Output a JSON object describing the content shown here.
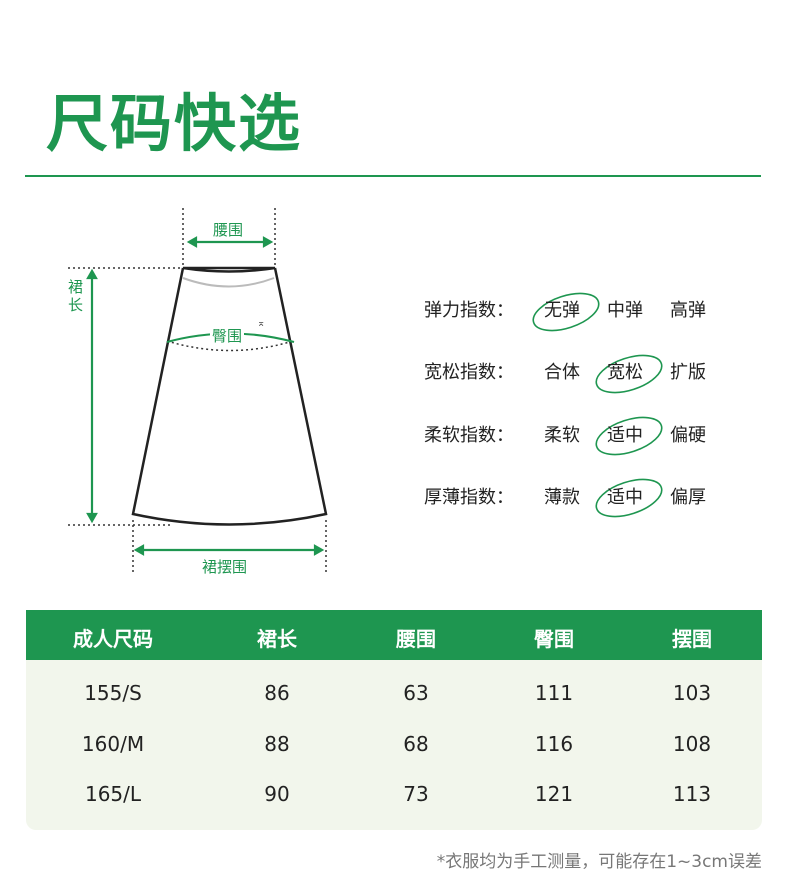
{
  "title": "尺码快选",
  "colors": {
    "accent": "#1e9650",
    "table_body": "#f2f6ec"
  },
  "diagram": {
    "waist": "腰围",
    "hip": "臀围",
    "length": "裙长",
    "hem": "裙摆围"
  },
  "attributes": [
    {
      "label": "弹力指数：",
      "options": [
        "无弹",
        "中弹",
        "高弹"
      ],
      "selected": 0
    },
    {
      "label": "宽松指数：",
      "options": [
        "合体",
        "宽松",
        "扩版"
      ],
      "selected": 1
    },
    {
      "label": "柔软指数：",
      "options": [
        "柔软",
        "适中",
        "偏硬"
      ],
      "selected": 1
    },
    {
      "label": "厚薄指数：",
      "options": [
        "薄款",
        "适中",
        "偏厚"
      ],
      "selected": 1
    }
  ],
  "table": {
    "headers": [
      "成人尺码",
      "裙长",
      "腰围",
      "臀围",
      "摆围"
    ],
    "rows": [
      [
        "155/S",
        "86",
        "63",
        "111",
        "103"
      ],
      [
        "160/M",
        "88",
        "68",
        "116",
        "108"
      ],
      [
        "165/L",
        "90",
        "73",
        "121",
        "113"
      ]
    ]
  },
  "footnote": "*衣服均为手工测量，可能存在1~3cm误差"
}
